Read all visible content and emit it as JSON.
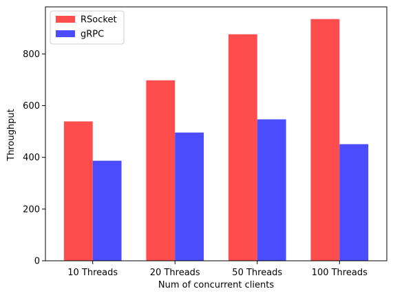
{
  "chart_data": {
    "type": "bar",
    "categories": [
      "10 Threads",
      "20 Threads",
      "50 Threads",
      "100 Threads"
    ],
    "series": [
      {
        "name": "RSocket",
        "values": [
          539,
          698,
          876,
          935
        ],
        "color": "#ff4c4c"
      },
      {
        "name": "gRPC",
        "values": [
          387,
          496,
          547,
          451
        ],
        "color": "#4c4cff"
      }
    ],
    "xlabel": "Num of concurrent clients",
    "ylabel": "Throughput",
    "ylim": [
      0,
      982
    ],
    "yticks": [
      0,
      200,
      400,
      600,
      800
    ],
    "legend_position": "top-left",
    "grid": false
  }
}
